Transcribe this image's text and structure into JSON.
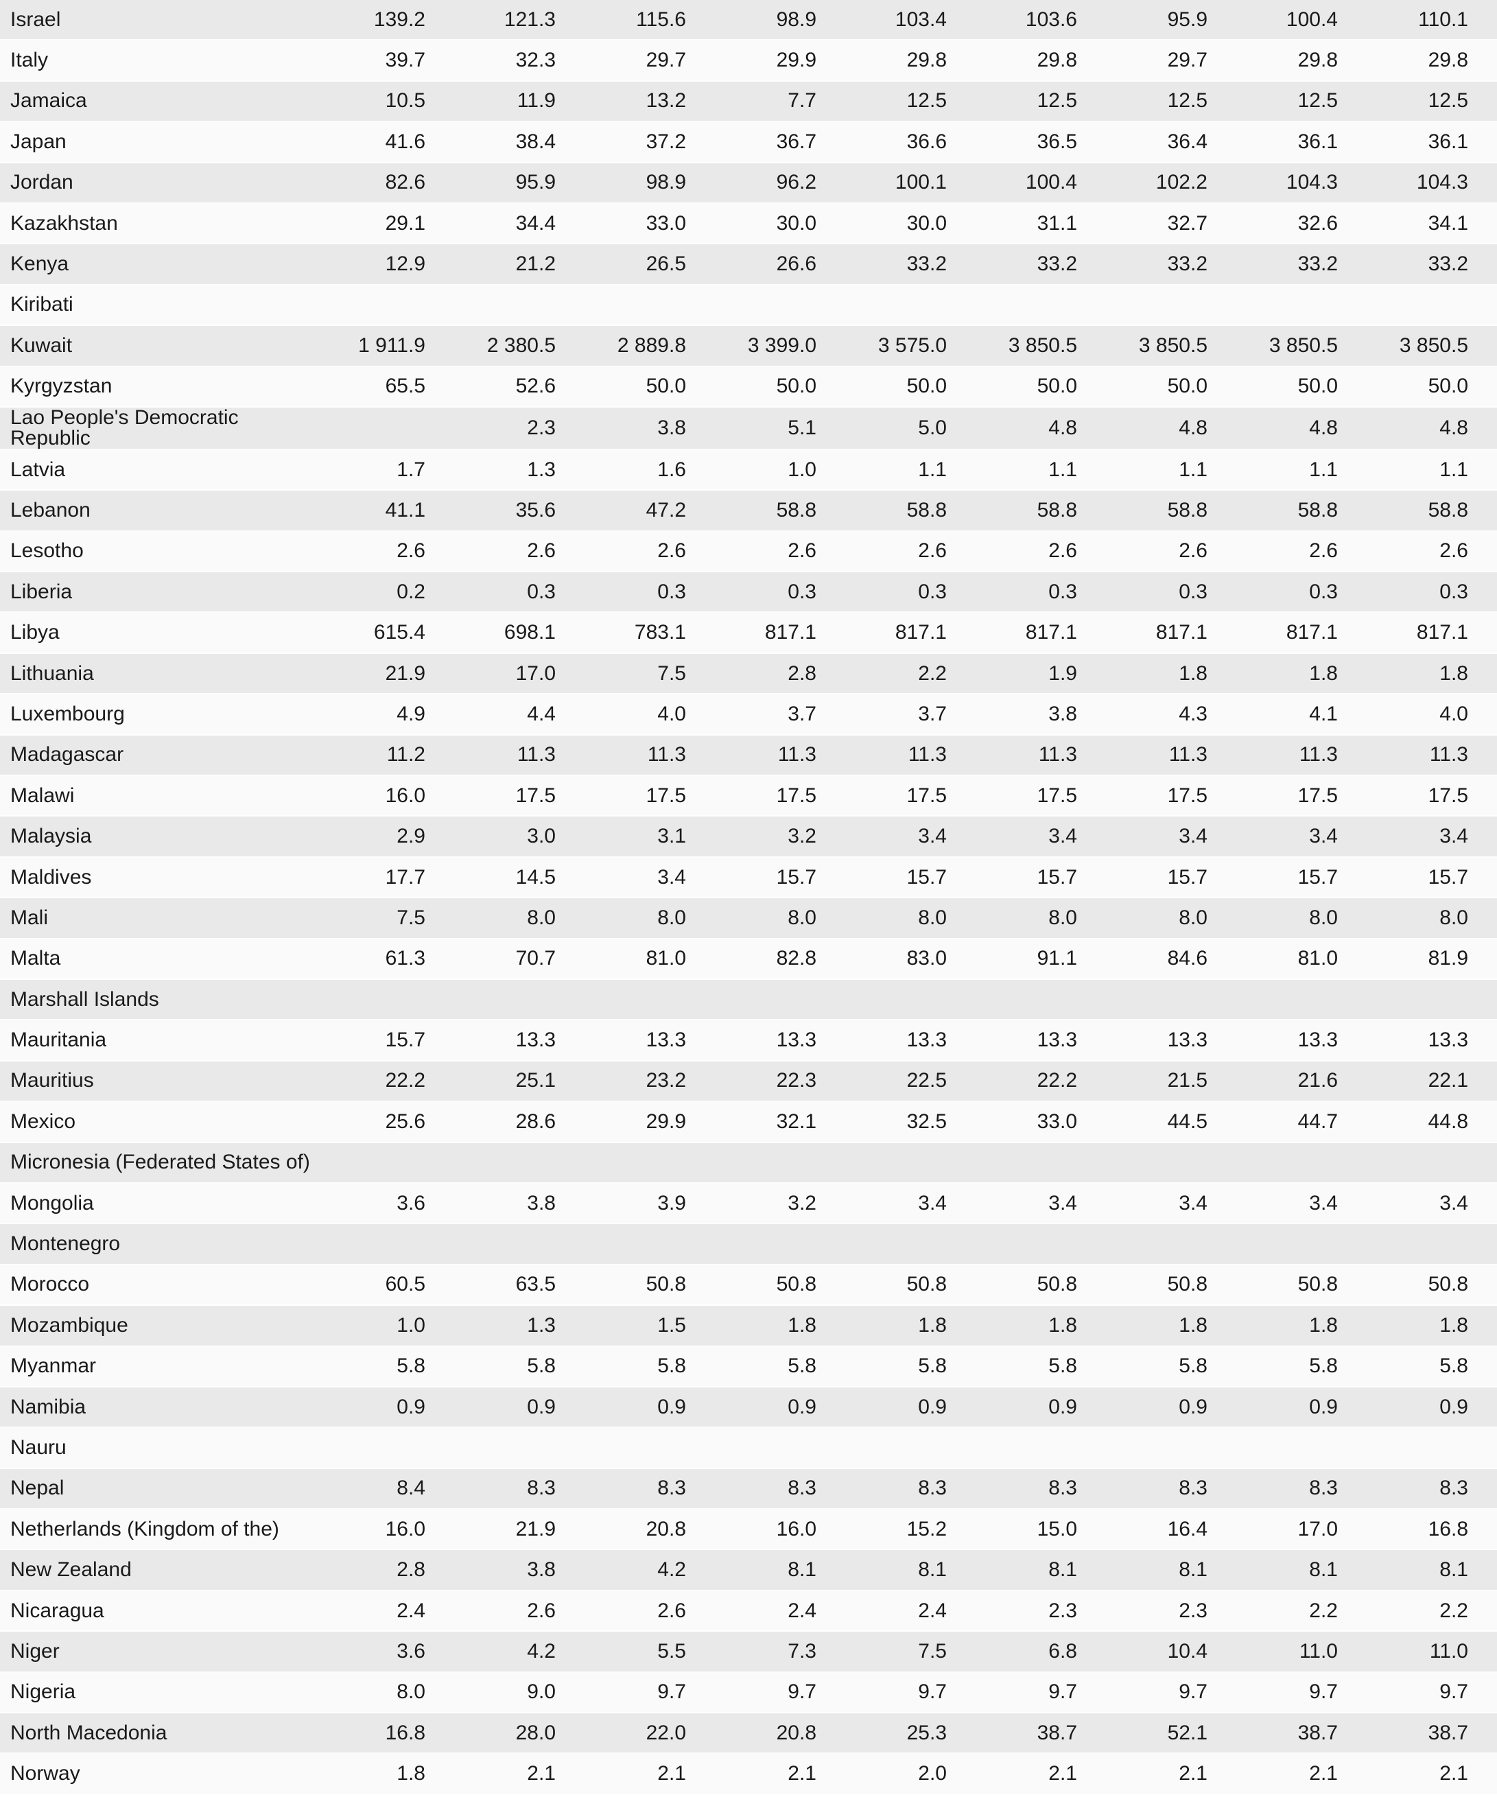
{
  "page": {
    "background_color": "#fafafa",
    "stripe_row_color": "#e9e9e9",
    "plain_row_color": "#fafafa",
    "text_color": "#1a1a1a"
  },
  "table": {
    "num_value_columns": 9,
    "rows": [
      {
        "country": "Israel",
        "values": [
          "139.2",
          "121.3",
          "115.6",
          "98.9",
          "103.4",
          "103.6",
          "95.9",
          "100.4",
          "110.1"
        ]
      },
      {
        "country": "Italy",
        "values": [
          "39.7",
          "32.3",
          "29.7",
          "29.9",
          "29.8",
          "29.8",
          "29.7",
          "29.8",
          "29.8"
        ]
      },
      {
        "country": "Jamaica",
        "values": [
          "10.5",
          "11.9",
          "13.2",
          "7.7",
          "12.5",
          "12.5",
          "12.5",
          "12.5",
          "12.5"
        ]
      },
      {
        "country": "Japan",
        "values": [
          "41.6",
          "38.4",
          "37.2",
          "36.7",
          "36.6",
          "36.5",
          "36.4",
          "36.1",
          "36.1"
        ]
      },
      {
        "country": "Jordan",
        "values": [
          "82.6",
          "95.9",
          "98.9",
          "96.2",
          "100.1",
          "100.4",
          "102.2",
          "104.3",
          "104.3"
        ]
      },
      {
        "country": "Kazakhstan",
        "values": [
          "29.1",
          "34.4",
          "33.0",
          "30.0",
          "30.0",
          "31.1",
          "32.7",
          "32.6",
          "34.1"
        ]
      },
      {
        "country": "Kenya",
        "values": [
          "12.9",
          "21.2",
          "26.5",
          "26.6",
          "33.2",
          "33.2",
          "33.2",
          "33.2",
          "33.2"
        ]
      },
      {
        "country": "Kiribati",
        "values": [
          "",
          "",
          "",
          "",
          "",
          "",
          "",
          "",
          ""
        ]
      },
      {
        "country": "Kuwait",
        "values": [
          "1 911.9",
          "2 380.5",
          "2 889.8",
          "3 399.0",
          "3 575.0",
          "3 850.5",
          "3 850.5",
          "3 850.5",
          "3 850.5"
        ]
      },
      {
        "country": "Kyrgyzstan",
        "values": [
          "65.5",
          "52.6",
          "50.0",
          "50.0",
          "50.0",
          "50.0",
          "50.0",
          "50.0",
          "50.0"
        ]
      },
      {
        "country": "Lao People's Democratic Republic",
        "values": [
          "",
          "2.3",
          "3.8",
          "5.1",
          "5.0",
          "4.8",
          "4.8",
          "4.8",
          "4.8"
        ]
      },
      {
        "country": "Latvia",
        "values": [
          "1.7",
          "1.3",
          "1.6",
          "1.0",
          "1.1",
          "1.1",
          "1.1",
          "1.1",
          "1.1"
        ]
      },
      {
        "country": "Lebanon",
        "values": [
          "41.1",
          "35.6",
          "47.2",
          "58.8",
          "58.8",
          "58.8",
          "58.8",
          "58.8",
          "58.8"
        ]
      },
      {
        "country": "Lesotho",
        "values": [
          "2.6",
          "2.6",
          "2.6",
          "2.6",
          "2.6",
          "2.6",
          "2.6",
          "2.6",
          "2.6"
        ]
      },
      {
        "country": "Liberia",
        "values": [
          "0.2",
          "0.3",
          "0.3",
          "0.3",
          "0.3",
          "0.3",
          "0.3",
          "0.3",
          "0.3"
        ]
      },
      {
        "country": "Libya",
        "values": [
          "615.4",
          "698.1",
          "783.1",
          "817.1",
          "817.1",
          "817.1",
          "817.1",
          "817.1",
          "817.1"
        ]
      },
      {
        "country": "Lithuania",
        "values": [
          "21.9",
          "17.0",
          "7.5",
          "2.8",
          "2.2",
          "1.9",
          "1.8",
          "1.8",
          "1.8"
        ]
      },
      {
        "country": "Luxembourg",
        "values": [
          "4.9",
          "4.4",
          "4.0",
          "3.7",
          "3.7",
          "3.8",
          "4.3",
          "4.1",
          "4.0"
        ]
      },
      {
        "country": "Madagascar",
        "values": [
          "11.2",
          "11.3",
          "11.3",
          "11.3",
          "11.3",
          "11.3",
          "11.3",
          "11.3",
          "11.3"
        ]
      },
      {
        "country": "Malawi",
        "values": [
          "16.0",
          "17.5",
          "17.5",
          "17.5",
          "17.5",
          "17.5",
          "17.5",
          "17.5",
          "17.5"
        ]
      },
      {
        "country": "Malaysia",
        "values": [
          "2.9",
          "3.0",
          "3.1",
          "3.2",
          "3.4",
          "3.4",
          "3.4",
          "3.4",
          "3.4"
        ]
      },
      {
        "country": "Maldives",
        "values": [
          "17.7",
          "14.5",
          "3.4",
          "15.7",
          "15.7",
          "15.7",
          "15.7",
          "15.7",
          "15.7"
        ]
      },
      {
        "country": "Mali",
        "values": [
          "7.5",
          "8.0",
          "8.0",
          "8.0",
          "8.0",
          "8.0",
          "8.0",
          "8.0",
          "8.0"
        ]
      },
      {
        "country": "Malta",
        "values": [
          "61.3",
          "70.7",
          "81.0",
          "82.8",
          "83.0",
          "91.1",
          "84.6",
          "81.0",
          "81.9"
        ]
      },
      {
        "country": "Marshall Islands",
        "values": [
          "",
          "",
          "",
          "",
          "",
          "",
          "",
          "",
          ""
        ]
      },
      {
        "country": "Mauritania",
        "values": [
          "15.7",
          "13.3",
          "13.3",
          "13.3",
          "13.3",
          "13.3",
          "13.3",
          "13.3",
          "13.3"
        ]
      },
      {
        "country": "Mauritius",
        "values": [
          "22.2",
          "25.1",
          "23.2",
          "22.3",
          "22.5",
          "22.2",
          "21.5",
          "21.6",
          "22.1"
        ]
      },
      {
        "country": "Mexico",
        "values": [
          "25.6",
          "28.6",
          "29.9",
          "32.1",
          "32.5",
          "33.0",
          "44.5",
          "44.7",
          "44.8"
        ]
      },
      {
        "country": "Micronesia (Federated States of)",
        "values": [
          "",
          "",
          "",
          "",
          "",
          "",
          "",
          "",
          ""
        ]
      },
      {
        "country": "Mongolia",
        "values": [
          "3.6",
          "3.8",
          "3.9",
          "3.2",
          "3.4",
          "3.4",
          "3.4",
          "3.4",
          "3.4"
        ]
      },
      {
        "country": "Montenegro",
        "values": [
          "",
          "",
          "",
          "",
          "",
          "",
          "",
          "",
          ""
        ]
      },
      {
        "country": "Morocco",
        "values": [
          "60.5",
          "63.5",
          "50.8",
          "50.8",
          "50.8",
          "50.8",
          "50.8",
          "50.8",
          "50.8"
        ]
      },
      {
        "country": "Mozambique",
        "values": [
          "1.0",
          "1.3",
          "1.5",
          "1.8",
          "1.8",
          "1.8",
          "1.8",
          "1.8",
          "1.8"
        ]
      },
      {
        "country": "Myanmar",
        "values": [
          "5.8",
          "5.8",
          "5.8",
          "5.8",
          "5.8",
          "5.8",
          "5.8",
          "5.8",
          "5.8"
        ]
      },
      {
        "country": "Namibia",
        "values": [
          "0.9",
          "0.9",
          "0.9",
          "0.9",
          "0.9",
          "0.9",
          "0.9",
          "0.9",
          "0.9"
        ]
      },
      {
        "country": "Nauru",
        "values": [
          "",
          "",
          "",
          "",
          "",
          "",
          "",
          "",
          ""
        ]
      },
      {
        "country": "Nepal",
        "values": [
          "8.4",
          "8.3",
          "8.3",
          "8.3",
          "8.3",
          "8.3",
          "8.3",
          "8.3",
          "8.3"
        ]
      },
      {
        "country": "Netherlands (Kingdom of the)",
        "values": [
          "16.0",
          "21.9",
          "20.8",
          "16.0",
          "15.2",
          "15.0",
          "16.4",
          "17.0",
          "16.8"
        ]
      },
      {
        "country": "New Zealand",
        "values": [
          "2.8",
          "3.8",
          "4.2",
          "8.1",
          "8.1",
          "8.1",
          "8.1",
          "8.1",
          "8.1"
        ]
      },
      {
        "country": "Nicaragua",
        "values": [
          "2.4",
          "2.6",
          "2.6",
          "2.4",
          "2.4",
          "2.3",
          "2.3",
          "2.2",
          "2.2"
        ]
      },
      {
        "country": "Niger",
        "values": [
          "3.6",
          "4.2",
          "5.5",
          "7.3",
          "7.5",
          "6.8",
          "10.4",
          "11.0",
          "11.0"
        ]
      },
      {
        "country": "Nigeria",
        "values": [
          "8.0",
          "9.0",
          "9.7",
          "9.7",
          "9.7",
          "9.7",
          "9.7",
          "9.7",
          "9.7"
        ]
      },
      {
        "country": "North Macedonia",
        "values": [
          "16.8",
          "28.0",
          "22.0",
          "20.8",
          "25.3",
          "38.7",
          "52.1",
          "38.7",
          "38.7"
        ]
      },
      {
        "country": "Norway",
        "values": [
          "1.8",
          "2.1",
          "2.1",
          "2.1",
          "2.0",
          "2.1",
          "2.1",
          "2.1",
          "2.1"
        ]
      }
    ]
  }
}
